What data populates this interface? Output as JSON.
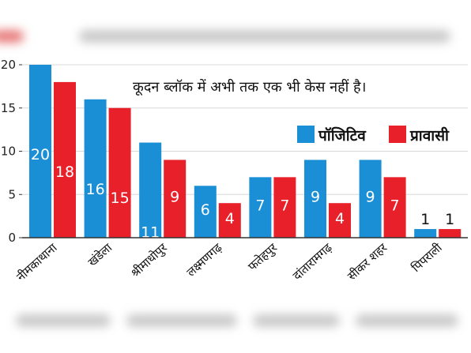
{
  "chart_data": {
    "type": "bar",
    "categories": [
      "नीमकाथाना",
      "खंडेला",
      "श्रीमाधोपुर",
      "लक्ष्मणगढ़",
      "फतेहपुर",
      "दांतारामगढ़",
      "सीकर शहर",
      "पिपराली"
    ],
    "series": [
      {
        "name": "पॉजिटिव",
        "color": "#1a8fd6",
        "values": [
          20,
          16,
          11,
          6,
          7,
          9,
          9,
          1
        ]
      },
      {
        "name": "प्रावासी",
        "color": "#e8202a",
        "values": [
          18,
          15,
          9,
          4,
          7,
          4,
          7,
          1
        ]
      }
    ],
    "yticks": [
      0,
      5,
      10,
      15,
      20
    ],
    "ylim": [
      0,
      20
    ],
    "annotation": "कूदन ब्लॉक में अभी तक एक भी केस नहीं है।"
  }
}
